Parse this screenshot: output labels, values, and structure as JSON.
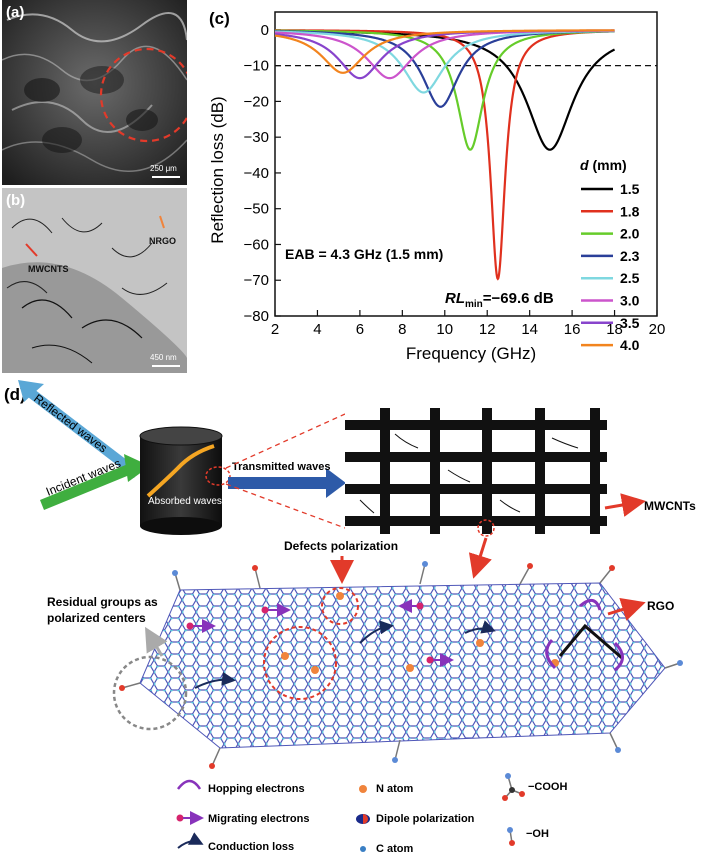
{
  "panel_a": {
    "letter": "(a)",
    "scale": "250 μm"
  },
  "panel_b": {
    "letter": "(b)",
    "scale": "450 nm",
    "label_mwcnts": "MWCNTS",
    "label_nrgo": "NRGO"
  },
  "panel_c": {
    "letter": "(c)"
  },
  "chart_data": {
    "type": "line",
    "xlabel": "Frequency (GHz)",
    "ylabel": "Reflection loss (dB)",
    "xlim": [
      2,
      20
    ],
    "ylim": [
      -80,
      5
    ],
    "xticks": [
      2,
      4,
      6,
      8,
      10,
      12,
      14,
      16,
      18,
      20
    ],
    "yticks": [
      0,
      -10,
      -20,
      -30,
      -40,
      -50,
      -60,
      -70,
      -80
    ],
    "threshold": -10,
    "legend_title_italic": "d",
    "legend_title_rest": " (mm)",
    "legend_position": "right",
    "annotation_eab": "EAB = 4.3 GHz (1.5 mm)",
    "annotation_rl_main": "RL",
    "annotation_rl_sub": "min",
    "annotation_rl_value": "=−69.6 dB",
    "series": [
      {
        "name": "1.5",
        "color": "#000000",
        "fmin": 14.95,
        "rlmin": -33.5,
        "width": 1.35
      },
      {
        "name": "1.8",
        "color": "#e0301e",
        "fmin": 12.5,
        "rlmin": -69.6,
        "width": 0.42
      },
      {
        "name": "2.0",
        "color": "#66cc2a",
        "fmin": 11.2,
        "rlmin": -33.5,
        "width": 0.75
      },
      {
        "name": "2.3",
        "color": "#2a3f99",
        "fmin": 9.8,
        "rlmin": -21.5,
        "width": 1.05
      },
      {
        "name": "2.5",
        "color": "#7fd8e0",
        "fmin": 9.0,
        "rlmin": -17.5,
        "width": 1.2
      },
      {
        "name": "3.0",
        "color": "#cc55cc",
        "fmin": 7.4,
        "rlmin": -13.5,
        "width": 1.3
      },
      {
        "name": "3.5",
        "color": "#8844cc",
        "fmin": 6.0,
        "rlmin": -13.5,
        "width": 1.25
      },
      {
        "name": "4.0",
        "color": "#f2841e",
        "fmin": 5.2,
        "rlmin": -12.0,
        "width": 1.25
      }
    ]
  },
  "panel_d": {
    "letter": "(d)",
    "reflected": "Reflected waves",
    "incident": "Incident waves",
    "absorbed": "Absorbed waves",
    "transmitted": "Transmitted waves",
    "mwcnts": "MWCNTs",
    "rgo": "RGO",
    "defects": "Defects polarization",
    "residual_line1": "Residual groups as",
    "residual_line2": "polarized centers",
    "legend": {
      "hopping": "Hopping electrons",
      "migrating": "Migrating electrons",
      "conduction": "Conduction loss",
      "n_atom": "N atom",
      "dipole": "Dipole polarization",
      "c_atom": "C atom",
      "cooh": "−COOH",
      "oh": "−OH"
    }
  }
}
